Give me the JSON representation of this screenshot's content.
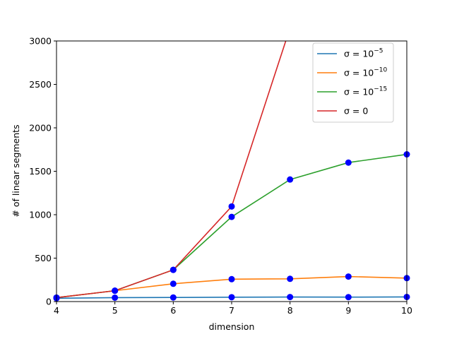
{
  "chart_data": {
    "type": "line",
    "xlabel": "dimension",
    "ylabel": "# of linear segments",
    "xlim": [
      4,
      10
    ],
    "ylim": [
      0,
      3000
    ],
    "x": [
      4,
      5,
      6,
      7,
      8,
      9,
      10
    ],
    "xticks": [
      "4",
      "5",
      "6",
      "7",
      "8",
      "9",
      "10"
    ],
    "yticks": [
      "0",
      "500",
      "1000",
      "1500",
      "2000",
      "2500",
      "3000"
    ],
    "marker_color": "#0000ff",
    "legend_position": "top-right",
    "grid": false,
    "series": [
      {
        "name": "σ = 10⁻⁵",
        "name_base": "σ = 10",
        "name_exp": "−5",
        "color": "#1f77b4",
        "values": [
          38,
          45,
          47,
          50,
          52,
          51,
          53
        ]
      },
      {
        "name": "σ = 10⁻¹⁰",
        "name_base": "σ = 10",
        "name_exp": "−10",
        "color": "#ff7f0e",
        "values": [
          45,
          125,
          205,
          258,
          262,
          288,
          270
        ]
      },
      {
        "name": "σ = 10⁻¹⁵",
        "name_base": "σ = 10",
        "name_exp": "−15",
        "color": "#2ca02c",
        "values": [
          45,
          125,
          365,
          975,
          1405,
          1600,
          1695
        ]
      },
      {
        "name": "σ = 0",
        "name_base": "σ = 0",
        "name_exp": "",
        "color": "#d62728",
        "values": [
          45,
          125,
          365,
          1095,
          3150,
          null,
          null
        ]
      }
    ]
  }
}
